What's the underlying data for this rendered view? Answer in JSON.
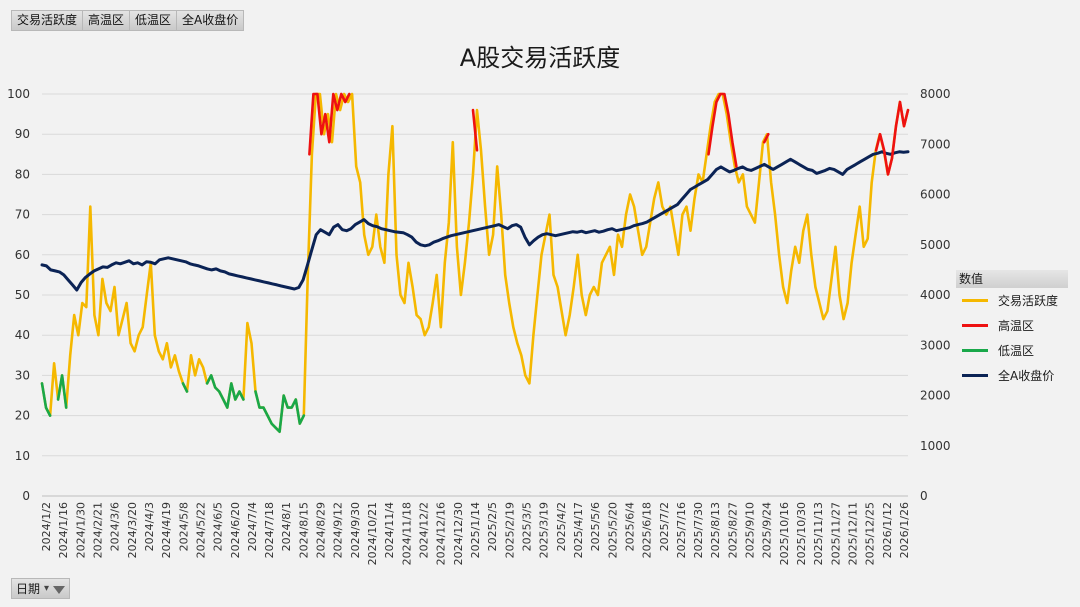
{
  "field_buttons": [
    "交易活跃度",
    "高温区",
    "低温区",
    "全A收盘价"
  ],
  "date_filter": {
    "label": "日期"
  },
  "legend": {
    "title": "数值",
    "items": [
      {
        "name": "交易活跃度",
        "color": "#f5b800"
      },
      {
        "name": "高温区",
        "color": "#ee1111"
      },
      {
        "name": "低温区",
        "color": "#19a84a"
      },
      {
        "name": "全A收盘价",
        "color": "#0b2355"
      }
    ]
  },
  "chart_data": {
    "type": "line",
    "title": "A股交易活跃度",
    "left_axis": {
      "ylim": [
        0,
        100
      ],
      "ticks": [
        0,
        10,
        20,
        30,
        40,
        50,
        60,
        70,
        80,
        90,
        100
      ]
    },
    "right_axis": {
      "ylim": [
        0,
        8000
      ],
      "ticks": [
        0,
        1000,
        2000,
        3000,
        4000,
        5000,
        6000,
        7000,
        8000
      ]
    },
    "x_tick_labels": [
      "2024/1/2",
      "2024/1/16",
      "2024/1/30",
      "2024/2/21",
      "2024/3/6",
      "2024/3/20",
      "2024/4/3",
      "2024/4/19",
      "2024/5/8",
      "2024/5/22",
      "2024/6/5",
      "2024/6/20",
      "2024/7/4",
      "2024/7/18",
      "2024/8/1",
      "2024/8/15",
      "2024/8/29",
      "2024/9/12",
      "2024/9/30",
      "2024/10/21",
      "2024/11/4",
      "2024/11/18",
      "2024/12/2",
      "2024/12/16",
      "2024/12/30",
      "2025/1/14",
      "2025/2/5",
      "2025/2/19",
      "2025/3/5",
      "2025/3/19",
      "2025/4/2",
      "2025/4/17",
      "2025/5/6",
      "2025/5/20",
      "2025/6/4",
      "2025/6/18",
      "2025/7/2",
      "2025/7/16",
      "2025/7/30",
      "2025/8/13",
      "2025/8/27",
      "2025/9/10",
      "2025/9/24",
      "2025/10/16",
      "2025/10/30",
      "2025/11/13",
      "2025/11/27",
      "2025/12/11",
      "2025/12/25",
      "2026/1/12",
      "2026/1/26"
    ],
    "grid": true,
    "legend_position": "right",
    "series": [
      {
        "name": "交易活跃度",
        "axis": "left",
        "color": "#f5b800",
        "values": [
          28,
          22,
          20,
          33,
          24,
          30,
          22,
          35,
          45,
          40,
          48,
          47,
          72,
          45,
          40,
          54,
          48,
          46,
          52,
          40,
          44,
          48,
          38,
          36,
          40,
          42,
          50,
          58,
          40,
          36,
          34,
          38,
          32,
          35,
          31,
          28,
          26,
          35,
          30,
          34,
          32,
          28,
          30,
          27,
          26,
          24,
          22,
          28,
          24,
          26,
          24,
          43,
          38,
          26,
          22,
          22,
          20,
          18,
          17,
          16,
          25,
          22,
          22,
          24,
          18,
          20,
          55,
          85,
          100,
          100,
          90,
          95,
          88,
          100,
          96,
          100,
          98,
          100,
          82,
          78,
          65,
          60,
          62,
          70,
          62,
          58,
          80,
          92,
          60,
          50,
          48,
          58,
          52,
          45,
          44,
          40,
          42,
          48,
          55,
          42,
          58,
          68,
          88,
          62,
          50,
          58,
          68,
          80,
          96,
          86,
          72,
          60,
          65,
          82,
          70,
          55,
          48,
          42,
          38,
          35,
          30,
          28,
          40,
          50,
          60,
          65,
          70,
          55,
          52,
          46,
          40,
          45,
          52,
          60,
          50,
          45,
          50,
          52,
          50,
          58,
          60,
          62,
          55,
          65,
          62,
          70,
          75,
          72,
          66,
          60,
          62,
          68,
          74,
          78,
          72,
          70,
          72,
          66,
          60,
          70,
          72,
          66,
          74,
          80,
          78,
          85,
          92,
          98,
          100,
          100,
          95,
          88,
          82,
          78,
          80,
          72,
          70,
          68,
          78,
          88,
          90,
          78,
          70,
          60,
          52,
          48,
          56,
          62,
          58,
          66,
          70,
          60,
          52,
          48,
          44,
          46,
          54,
          62,
          50,
          44,
          48,
          58,
          65,
          72,
          62,
          64,
          78,
          86,
          90,
          86,
          80,
          84,
          92,
          98,
          92,
          96
        ]
      },
      {
        "name": "高温区",
        "axis": "left",
        "color": "#ee1111",
        "values": [
          null,
          null,
          null,
          null,
          null,
          null,
          null,
          null,
          null,
          null,
          null,
          null,
          null,
          null,
          null,
          null,
          null,
          null,
          null,
          null,
          null,
          null,
          null,
          null,
          null,
          null,
          null,
          null,
          null,
          null,
          null,
          null,
          null,
          null,
          null,
          null,
          null,
          null,
          null,
          null,
          null,
          null,
          null,
          null,
          null,
          null,
          null,
          null,
          null,
          null,
          null,
          null,
          null,
          null,
          null,
          null,
          null,
          null,
          null,
          null,
          null,
          null,
          null,
          null,
          null,
          null,
          null,
          85,
          100,
          100,
          90,
          95,
          88,
          100,
          96,
          100,
          98,
          100,
          null,
          null,
          null,
          null,
          null,
          null,
          null,
          null,
          null,
          92,
          null,
          null,
          null,
          null,
          null,
          null,
          null,
          null,
          null,
          null,
          null,
          null,
          null,
          null,
          88,
          null,
          null,
          null,
          null,
          null,
          96,
          86,
          null,
          null,
          null,
          82,
          null,
          null,
          null,
          null,
          null,
          null,
          null,
          null,
          null,
          null,
          null,
          null,
          null,
          null,
          null,
          null,
          null,
          null,
          null,
          null,
          null,
          null,
          null,
          null,
          null,
          null,
          null,
          null,
          null,
          null,
          null,
          null,
          null,
          null,
          null,
          null,
          null,
          null,
          null,
          null,
          null,
          null,
          null,
          null,
          null,
          null,
          null,
          null,
          null,
          null,
          null,
          null,
          null,
          85,
          92,
          98,
          100,
          100,
          95,
          88,
          82,
          null,
          80,
          null,
          null,
          null,
          null,
          88,
          90,
          null,
          null,
          null,
          null,
          null,
          null,
          null,
          null,
          null,
          null,
          null,
          null,
          null,
          null,
          null,
          null,
          null,
          null,
          null,
          null,
          null,
          null,
          null,
          null,
          null,
          null,
          86,
          90,
          86,
          80,
          84,
          92,
          98,
          92,
          96
        ]
      },
      {
        "name": "低温区",
        "axis": "left",
        "color": "#19a84a",
        "values": [
          28,
          22,
          20,
          null,
          24,
          30,
          22,
          null,
          null,
          null,
          null,
          null,
          null,
          null,
          null,
          null,
          null,
          null,
          null,
          null,
          null,
          null,
          null,
          null,
          null,
          null,
          null,
          null,
          null,
          null,
          null,
          null,
          null,
          null,
          null,
          28,
          26,
          null,
          30,
          null,
          null,
          28,
          30,
          27,
          26,
          24,
          22,
          28,
          24,
          26,
          24,
          null,
          null,
          26,
          22,
          22,
          20,
          18,
          17,
          16,
          25,
          22,
          22,
          24,
          18,
          20,
          null,
          null,
          null,
          null,
          null,
          null,
          null,
          null,
          null,
          null,
          null,
          null,
          null,
          null,
          null,
          null,
          null,
          null,
          null,
          null,
          null,
          null,
          null,
          null,
          null,
          null,
          null,
          null,
          null,
          null,
          null,
          null,
          null,
          null,
          null,
          null,
          null,
          null,
          null,
          null,
          null,
          null,
          null,
          null,
          null,
          null,
          null,
          null,
          null,
          null,
          null,
          null,
          null,
          null,
          null,
          null,
          null,
          null,
          null,
          null,
          null,
          null,
          null,
          null,
          null,
          null,
          null,
          null,
          null,
          null,
          null,
          null,
          null,
          null,
          null,
          null,
          null,
          null,
          null,
          null,
          null,
          null,
          null,
          null,
          null,
          null,
          null,
          null,
          null,
          null,
          null,
          null,
          null,
          null,
          null,
          null,
          null,
          null,
          null,
          null,
          null,
          null,
          null,
          null,
          null,
          null,
          null,
          null,
          null,
          null,
          null,
          null,
          null,
          null,
          null,
          null,
          null,
          null,
          null,
          null,
          null,
          null,
          null,
          null,
          null,
          null,
          null,
          null,
          null,
          null,
          null,
          null,
          null,
          null,
          null,
          null,
          null,
          null,
          null,
          null,
          null,
          null,
          null,
          null,
          null,
          null,
          null,
          null,
          null,
          null
        ]
      },
      {
        "name": "全A收盘价",
        "axis": "right",
        "color": "#0b2355",
        "values": [
          4600,
          4580,
          4500,
          4480,
          4460,
          4400,
          4300,
          4200,
          4100,
          4250,
          4350,
          4420,
          4480,
          4520,
          4560,
          4550,
          4600,
          4640,
          4620,
          4650,
          4680,
          4620,
          4640,
          4600,
          4660,
          4650,
          4620,
          4700,
          4720,
          4740,
          4720,
          4700,
          4680,
          4660,
          4620,
          4600,
          4580,
          4550,
          4520,
          4500,
          4520,
          4480,
          4460,
          4420,
          4400,
          4380,
          4360,
          4340,
          4320,
          4300,
          4280,
          4260,
          4240,
          4220,
          4200,
          4180,
          4160,
          4140,
          4120,
          4150,
          4300,
          4600,
          4900,
          5200,
          5300,
          5250,
          5200,
          5350,
          5400,
          5300,
          5280,
          5320,
          5400,
          5450,
          5500,
          5420,
          5380,
          5360,
          5320,
          5300,
          5280,
          5260,
          5250,
          5240,
          5200,
          5150,
          5050,
          5000,
          4980,
          5000,
          5050,
          5080,
          5120,
          5150,
          5180,
          5200,
          5220,
          5240,
          5260,
          5280,
          5300,
          5320,
          5340,
          5360,
          5380,
          5400,
          5360,
          5320,
          5380,
          5400,
          5350,
          5150,
          5000,
          5080,
          5150,
          5200,
          5220,
          5200,
          5180,
          5200,
          5220,
          5240,
          5260,
          5250,
          5270,
          5240,
          5260,
          5280,
          5250,
          5270,
          5300,
          5320,
          5280,
          5300,
          5320,
          5340,
          5380,
          5400,
          5420,
          5450,
          5500,
          5550,
          5600,
          5650,
          5700,
          5750,
          5800,
          5900,
          6000,
          6100,
          6150,
          6200,
          6250,
          6300,
          6400,
          6500,
          6550,
          6500,
          6450,
          6480,
          6520,
          6550,
          6500,
          6480,
          6520,
          6560,
          6600,
          6550,
          6500,
          6550,
          6600,
          6650,
          6700,
          6650,
          6600,
          6550,
          6500,
          6480,
          6420,
          6450,
          6480,
          6520,
          6500,
          6450,
          6400,
          6500,
          6550,
          6600,
          6650,
          6700,
          6750,
          6800,
          6820,
          6850,
          6820,
          6800,
          6830,
          6850,
          6840,
          6850
        ]
      }
    ]
  }
}
